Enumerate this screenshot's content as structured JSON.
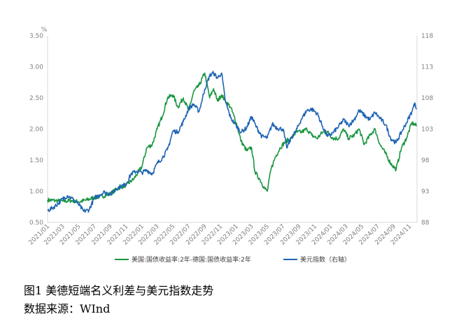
{
  "chart_data": {
    "type": "line",
    "title": "",
    "left_axis": {
      "unit": "%",
      "range": [
        0.5,
        3.5
      ],
      "ticks": [
        "0.50",
        "1.00",
        "1.50",
        "2.00",
        "2.50",
        "3.00",
        "3.50"
      ]
    },
    "right_axis": {
      "range": [
        88,
        118
      ],
      "ticks": [
        "88",
        "93",
        "98",
        "103",
        "108",
        "113",
        "118"
      ]
    },
    "x_ticks": [
      "2021/01",
      "2021/03",
      "2021/05",
      "2021/07",
      "2021/09",
      "2021/11",
      "2022/01",
      "2022/03",
      "2022/05",
      "2022/07",
      "2022/09",
      "2022/11",
      "2023/01",
      "2023/03",
      "2023/05",
      "2023/07",
      "2023/09",
      "2023/11",
      "2024/01",
      "2024/03",
      "2024/05",
      "2024/07",
      "2024/09",
      "2024/11"
    ],
    "x_range": [
      "2021-01-01",
      "2024-11-30"
    ],
    "legend_position": "bottom",
    "series": [
      {
        "name": "美国:国债收益率:2年-德国:国债收益率:2年",
        "axis": "left",
        "color": "#1a9641",
        "x": [
          "2021-01-01",
          "2021-02-01",
          "2021-03-01",
          "2021-04-01",
          "2021-05-01",
          "2021-06-01",
          "2021-07-01",
          "2021-08-01",
          "2021-09-01",
          "2021-10-01",
          "2021-11-01",
          "2021-12-01",
          "2022-01-01",
          "2022-01-20",
          "2022-02-10",
          "2022-03-01",
          "2022-03-20",
          "2022-04-10",
          "2022-05-01",
          "2022-05-20",
          "2022-06-10",
          "2022-07-01",
          "2022-07-20",
          "2022-08-10",
          "2022-09-01",
          "2022-09-20",
          "2022-10-05",
          "2022-10-20",
          "2022-11-05",
          "2022-11-20",
          "2022-12-10",
          "2023-01-01",
          "2023-01-20",
          "2023-02-10",
          "2023-03-01",
          "2023-03-15",
          "2023-04-01",
          "2023-04-20",
          "2023-05-01",
          "2023-05-15",
          "2023-06-01",
          "2023-06-20",
          "2023-07-10",
          "2023-08-01",
          "2023-08-20",
          "2023-09-10",
          "2023-10-01",
          "2023-10-20",
          "2023-11-10",
          "2023-12-01",
          "2023-12-20",
          "2024-01-10",
          "2024-02-01",
          "2024-02-20",
          "2024-03-10",
          "2024-04-01",
          "2024-04-20",
          "2024-05-10",
          "2024-06-01",
          "2024-06-20",
          "2024-07-10",
          "2024-08-01",
          "2024-08-20",
          "2024-09-10",
          "2024-10-01",
          "2024-10-20",
          "2024-11-10",
          "2024-11-29"
        ],
        "values": [
          0.86,
          0.85,
          0.84,
          0.85,
          0.83,
          0.86,
          0.9,
          0.92,
          0.96,
          1.05,
          1.1,
          1.2,
          1.4,
          1.7,
          1.75,
          2.0,
          2.2,
          2.5,
          2.55,
          2.35,
          2.5,
          2.3,
          2.6,
          2.7,
          2.9,
          2.5,
          2.65,
          2.45,
          2.55,
          2.45,
          2.35,
          2.1,
          1.8,
          1.65,
          1.7,
          1.3,
          1.2,
          1.05,
          1.0,
          1.35,
          1.55,
          1.7,
          1.8,
          1.85,
          1.95,
          1.95,
          2.0,
          1.9,
          1.85,
          1.95,
          1.95,
          1.85,
          1.85,
          2.0,
          1.85,
          1.9,
          2.0,
          1.75,
          1.9,
          2.0,
          1.75,
          1.6,
          1.45,
          1.35,
          1.7,
          1.85,
          2.1,
          2.05
        ]
      },
      {
        "name": "美元指数（右轴）",
        "axis": "right",
        "color": "#1f64b4",
        "x": [
          "2021-01-01",
          "2021-01-20",
          "2021-02-10",
          "2021-03-01",
          "2021-03-20",
          "2021-04-10",
          "2021-05-01",
          "2021-05-20",
          "2021-06-10",
          "2021-07-01",
          "2021-07-20",
          "2021-08-10",
          "2021-09-01",
          "2021-09-20",
          "2021-10-10",
          "2021-11-01",
          "2021-11-20",
          "2021-12-10",
          "2022-01-01",
          "2022-01-20",
          "2022-02-10",
          "2022-03-01",
          "2022-03-20",
          "2022-04-10",
          "2022-05-01",
          "2022-05-20",
          "2022-06-10",
          "2022-07-01",
          "2022-07-20",
          "2022-08-10",
          "2022-09-01",
          "2022-09-20",
          "2022-10-05",
          "2022-10-20",
          "2022-11-05",
          "2022-11-20",
          "2022-12-10",
          "2023-01-01",
          "2023-01-20",
          "2023-02-10",
          "2023-03-01",
          "2023-03-20",
          "2023-04-10",
          "2023-05-01",
          "2023-05-20",
          "2023-06-10",
          "2023-07-01",
          "2023-07-15",
          "2023-08-01",
          "2023-08-20",
          "2023-09-10",
          "2023-10-01",
          "2023-10-20",
          "2023-11-10",
          "2023-12-01",
          "2023-12-20",
          "2024-01-10",
          "2024-02-01",
          "2024-02-20",
          "2024-03-10",
          "2024-04-01",
          "2024-04-20",
          "2024-05-10",
          "2024-06-01",
          "2024-06-20",
          "2024-07-10",
          "2024-08-01",
          "2024-08-20",
          "2024-09-10",
          "2024-10-01",
          "2024-10-20",
          "2024-11-10",
          "2024-11-22",
          "2024-11-29"
        ],
        "values": [
          89.9,
          90.3,
          91.0,
          91.8,
          92.3,
          91.7,
          90.9,
          89.8,
          90.0,
          91.9,
          92.4,
          92.9,
          92.5,
          93.3,
          93.8,
          94.1,
          95.8,
          96.2,
          96.0,
          96.4,
          95.8,
          97.5,
          98.3,
          99.7,
          102.7,
          102.5,
          104.2,
          106.3,
          107.0,
          105.8,
          109.4,
          111.6,
          112.0,
          111.2,
          112.0,
          107.4,
          104.8,
          103.5,
          102.5,
          103.2,
          105.0,
          103.3,
          101.8,
          101.6,
          103.8,
          103.1,
          103.0,
          100.0,
          101.5,
          102.7,
          104.6,
          106.0,
          106.2,
          105.5,
          103.4,
          101.8,
          102.4,
          103.4,
          104.5,
          103.6,
          104.5,
          106.0,
          105.2,
          104.5,
          105.7,
          104.7,
          103.7,
          101.5,
          100.8,
          102.5,
          104.0,
          105.8,
          107.2,
          106.2
        ]
      }
    ]
  },
  "caption": {
    "figure": "图1   美德短端名义利差与美元指数走势",
    "source": "数据来源：WInd"
  }
}
